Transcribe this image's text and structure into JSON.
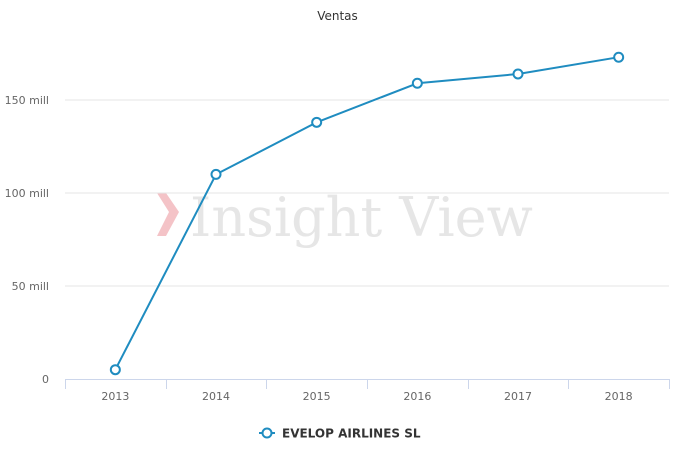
{
  "chart_data": {
    "type": "line",
    "title": "Ventas",
    "xlabel": "",
    "ylabel": "",
    "categories": [
      "2013",
      "2014",
      "2015",
      "2016",
      "2017",
      "2018"
    ],
    "series": [
      {
        "name": "EVELOP AIRLINES SL",
        "values": [
          5000000,
          110000000,
          138000000,
          159000000,
          164000000,
          173000000
        ],
        "color": "#1f8cc0"
      }
    ],
    "ylim": [
      0,
      185000000
    ],
    "yticks": [
      {
        "value": 0,
        "label": "0"
      },
      {
        "value": 50000000,
        "label": "50 mill"
      },
      {
        "value": 100000000,
        "label": "100 mill"
      },
      {
        "value": 150000000,
        "label": "150 mill"
      }
    ],
    "grid": true,
    "legend": "bottom-center"
  },
  "watermark": {
    "text": "Insight View",
    "mark_color": "#f4c3c7"
  }
}
